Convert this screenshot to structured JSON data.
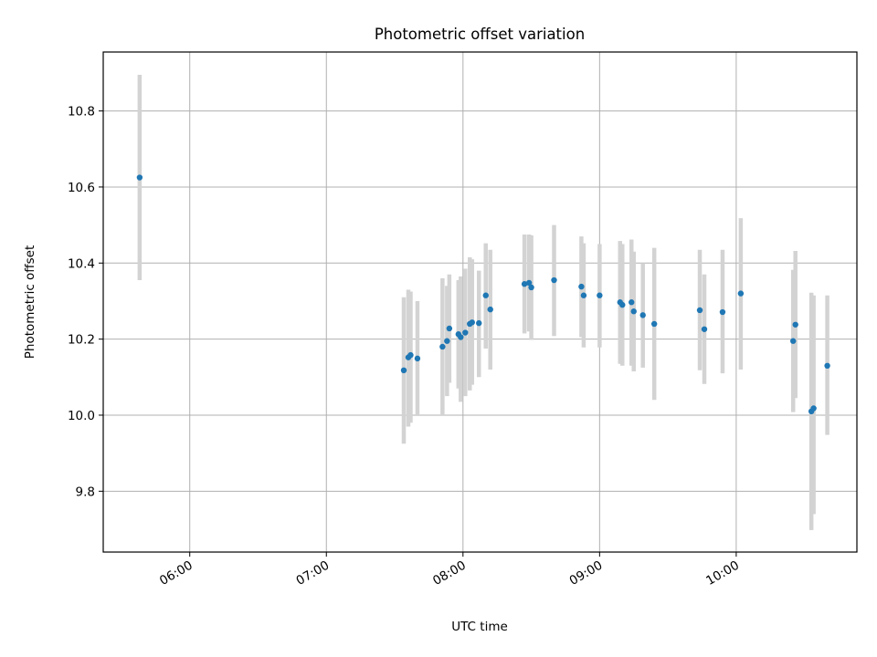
{
  "chart_data": {
    "type": "scatter",
    "title": "Photometric offset variation",
    "xlabel": "UTC time",
    "ylabel": "Photometric offset",
    "grid": true,
    "xlim": [
      "05:22",
      "10:53"
    ],
    "ylim": [
      9.64,
      10.955
    ],
    "x_ticks": [
      "06:00",
      "07:00",
      "08:00",
      "09:00",
      "10:00"
    ],
    "y_ticks": [
      9.8,
      10.0,
      10.2,
      10.4,
      10.6,
      10.8
    ],
    "points": [
      {
        "x": "05:38",
        "y": 10.625,
        "lo": 10.355,
        "hi": 10.895
      },
      {
        "x": "07:34",
        "y": 10.118,
        "lo": 9.925,
        "hi": 10.31
      },
      {
        "x": "07:36",
        "y": 10.152,
        "lo": 9.97,
        "hi": 10.33
      },
      {
        "x": "07:37",
        "y": 10.158,
        "lo": 9.98,
        "hi": 10.325
      },
      {
        "x": "07:40",
        "y": 10.149,
        "lo": 10.0,
        "hi": 10.3
      },
      {
        "x": "07:51",
        "y": 10.18,
        "lo": 10.0,
        "hi": 10.36
      },
      {
        "x": "07:53",
        "y": 10.195,
        "lo": 10.05,
        "hi": 10.34
      },
      {
        "x": "07:54",
        "y": 10.228,
        "lo": 10.085,
        "hi": 10.37
      },
      {
        "x": "07:58",
        "y": 10.213,
        "lo": 10.07,
        "hi": 10.355
      },
      {
        "x": "07:59",
        "y": 10.205,
        "lo": 10.035,
        "hi": 10.365
      },
      {
        "x": "08:01",
        "y": 10.217,
        "lo": 10.05,
        "hi": 10.385
      },
      {
        "x": "08:03",
        "y": 10.24,
        "lo": 10.065,
        "hi": 10.415
      },
      {
        "x": "08:04",
        "y": 10.244,
        "lo": 10.08,
        "hi": 10.41
      },
      {
        "x": "08:07",
        "y": 10.242,
        "lo": 10.1,
        "hi": 10.38
      },
      {
        "x": "08:10",
        "y": 10.315,
        "lo": 10.175,
        "hi": 10.452
      },
      {
        "x": "08:12",
        "y": 10.278,
        "lo": 10.12,
        "hi": 10.435
      },
      {
        "x": "08:27",
        "y": 10.345,
        "lo": 10.215,
        "hi": 10.475
      },
      {
        "x": "08:29",
        "y": 10.348,
        "lo": 10.22,
        "hi": 10.475
      },
      {
        "x": "08:30",
        "y": 10.336,
        "lo": 10.198,
        "hi": 10.473
      },
      {
        "x": "08:40",
        "y": 10.355,
        "lo": 10.208,
        "hi": 10.5
      },
      {
        "x": "08:52",
        "y": 10.338,
        "lo": 10.205,
        "hi": 10.47
      },
      {
        "x": "08:53",
        "y": 10.315,
        "lo": 10.178,
        "hi": 10.452
      },
      {
        "x": "09:00",
        "y": 10.315,
        "lo": 10.178,
        "hi": 10.45
      },
      {
        "x": "09:09",
        "y": 10.297,
        "lo": 10.135,
        "hi": 10.458
      },
      {
        "x": "09:10",
        "y": 10.29,
        "lo": 10.13,
        "hi": 10.45
      },
      {
        "x": "09:14",
        "y": 10.297,
        "lo": 10.13,
        "hi": 10.462
      },
      {
        "x": "09:15",
        "y": 10.273,
        "lo": 10.115,
        "hi": 10.43
      },
      {
        "x": "09:19",
        "y": 10.263,
        "lo": 10.125,
        "hi": 10.4
      },
      {
        "x": "09:24",
        "y": 10.24,
        "lo": 10.04,
        "hi": 10.44
      },
      {
        "x": "09:44",
        "y": 10.276,
        "lo": 10.118,
        "hi": 10.435
      },
      {
        "x": "09:46",
        "y": 10.226,
        "lo": 10.082,
        "hi": 10.37
      },
      {
        "x": "09:54",
        "y": 10.271,
        "lo": 10.11,
        "hi": 10.435
      },
      {
        "x": "10:02",
        "y": 10.32,
        "lo": 10.12,
        "hi": 10.518
      },
      {
        "x": "10:25",
        "y": 10.195,
        "lo": 10.008,
        "hi": 10.382
      },
      {
        "x": "10:26",
        "y": 10.238,
        "lo": 10.045,
        "hi": 10.432
      },
      {
        "x": "10:33",
        "y": 10.01,
        "lo": 9.698,
        "hi": 10.322
      },
      {
        "x": "10:34",
        "y": 10.018,
        "lo": 9.74,
        "hi": 10.315
      },
      {
        "x": "10:40",
        "y": 10.13,
        "lo": 9.948,
        "hi": 10.315
      }
    ]
  }
}
